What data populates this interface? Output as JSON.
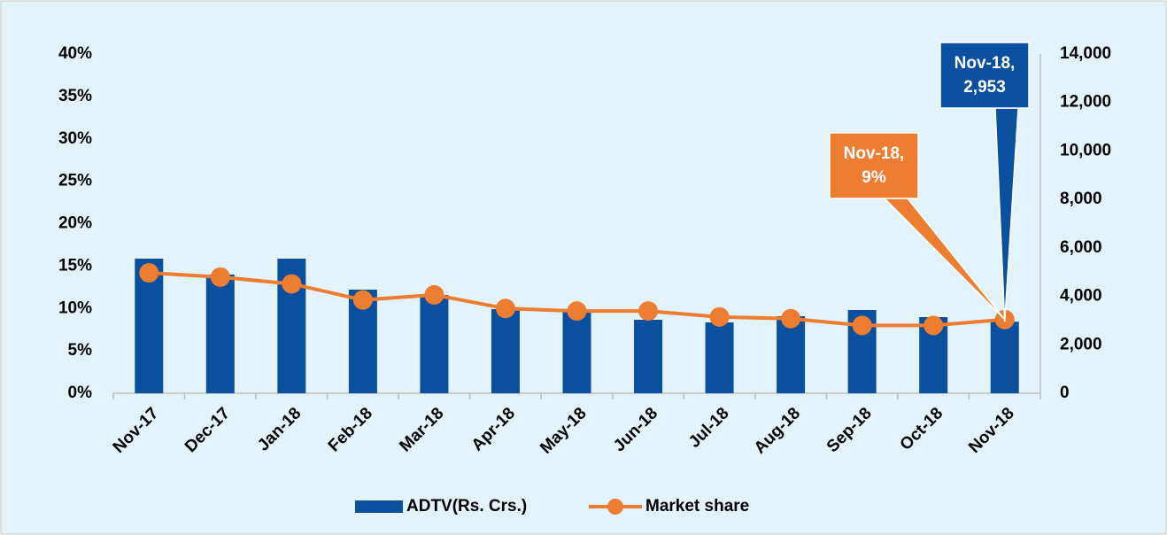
{
  "chart_data": {
    "type": "bar+line",
    "categories": [
      "Nov-17",
      "Dec-17",
      "Jan-18",
      "Feb-18",
      "Mar-18",
      "Apr-18",
      "May-18",
      "Jun-18",
      "Jul-18",
      "Aug-18",
      "Sep-18",
      "Oct-18",
      "Nov-18"
    ],
    "series": [
      {
        "name": "ADTV(Rs. Crs.)",
        "type": "bar",
        "axis": "y2",
        "color": "#0b4f9f",
        "values": [
          5556,
          4900,
          5556,
          4277,
          4057,
          3473,
          3436,
          3034,
          2924,
          3180,
          3436,
          3143,
          2953
        ],
        "value_labels": [
          null,
          null,
          null,
          null,
          null,
          null,
          null,
          null,
          null,
          null,
          null,
          null,
          "Nov-18, 2,953"
        ]
      },
      {
        "name": "Market share",
        "type": "line",
        "axis": "y",
        "color": "#ed7d31",
        "values": [
          14.2,
          13.7,
          12.9,
          11.0,
          11.6,
          10.0,
          9.7,
          9.7,
          9.0,
          8.8,
          8.0,
          8.0,
          8.7
        ],
        "value_labels": [
          null,
          null,
          null,
          null,
          null,
          null,
          null,
          null,
          null,
          null,
          null,
          null,
          "Nov-18, 9%"
        ]
      }
    ],
    "ylim": [
      0,
      40
    ],
    "yticks": [
      {
        "value": 0,
        "label": "0%"
      },
      {
        "value": 5,
        "label": "5%"
      },
      {
        "value": 10,
        "label": "10%"
      },
      {
        "value": 15,
        "label": "15%"
      },
      {
        "value": 20,
        "label": "20%"
      },
      {
        "value": 25,
        "label": "25%"
      },
      {
        "value": 30,
        "label": "30%"
      },
      {
        "value": 35,
        "label": "35%"
      },
      {
        "value": 40,
        "label": "40%"
      }
    ],
    "y2lim": [
      0,
      14000
    ],
    "y2ticks": [
      0,
      {
        "value": 2000,
        "label": "2,000"
      },
      {
        "value": 4000,
        "label": "4,000"
      },
      {
        "value": 6000,
        "label": "6,000"
      },
      {
        "value": 8000,
        "label": "8,000"
      },
      {
        "value": 10000,
        "label": "10,000"
      },
      {
        "value": 12000,
        "label": "12,000"
      },
      {
        "value": 14000,
        "label": "14,000"
      }
    ],
    "grid": false,
    "legend": "bottom"
  }
}
